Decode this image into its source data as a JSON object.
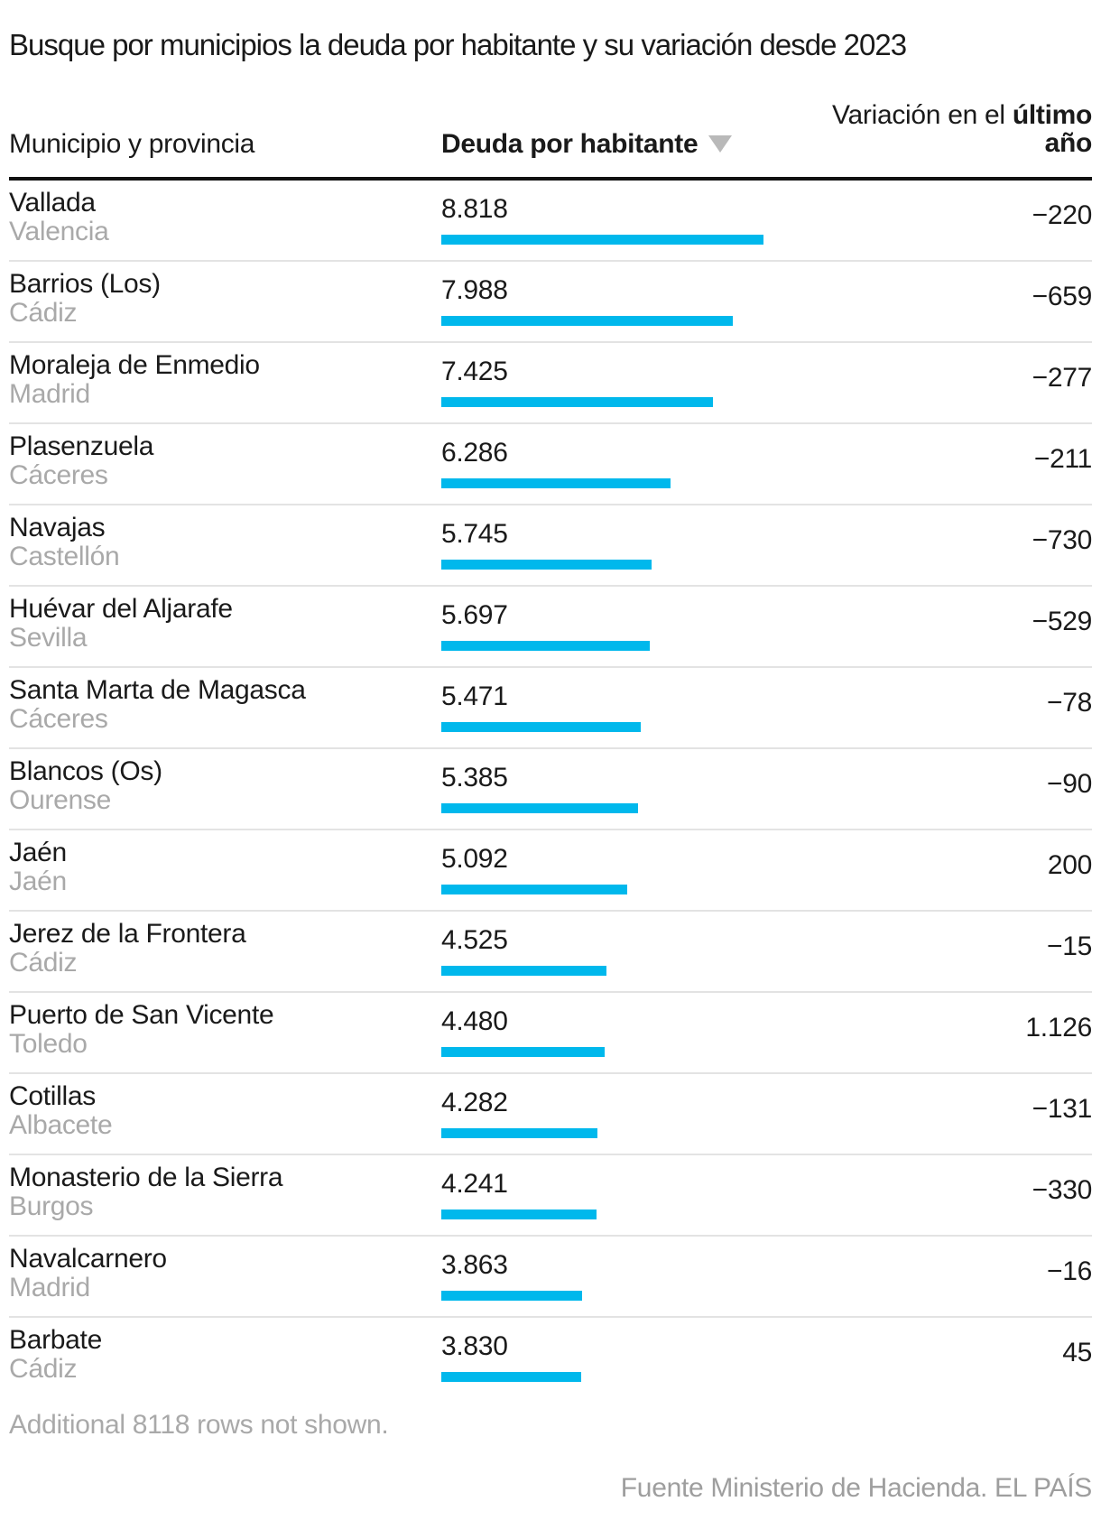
{
  "title": "Busque por municipios la deuda por habitante y su variación desde 2023",
  "table": {
    "col_municipio": "Municipio y provincia",
    "col_deuda": "Deuda por habitante",
    "sort_icon": "triangle-down-icon",
    "col_variacion_line1_regular": "Variación en el ",
    "col_variacion_line1_bold": "último",
    "col_variacion_line2_bold": "año",
    "bar_color": "#00b8ec",
    "rows": [
      {
        "municipio": "Vallada",
        "provincia": "Valencia",
        "deuda": "8.818",
        "deuda_value": 8818,
        "variacion": "−220"
      },
      {
        "municipio": "Barrios (Los)",
        "provincia": "Cádiz",
        "deuda": "7.988",
        "deuda_value": 7988,
        "variacion": "−659"
      },
      {
        "municipio": "Moraleja de Enmedio",
        "provincia": "Madrid",
        "deuda": "7.425",
        "deuda_value": 7425,
        "variacion": "−277"
      },
      {
        "municipio": "Plasenzuela",
        "provincia": "Cáceres",
        "deuda": "6.286",
        "deuda_value": 6286,
        "variacion": "−211"
      },
      {
        "municipio": "Navajas",
        "provincia": "Castellón",
        "deuda": "5.745",
        "deuda_value": 5745,
        "variacion": "−730"
      },
      {
        "municipio": "Huévar del Aljarafe",
        "provincia": "Sevilla",
        "deuda": "5.697",
        "deuda_value": 5697,
        "variacion": "−529"
      },
      {
        "municipio": "Santa Marta de Magasca",
        "provincia": "Cáceres",
        "deuda": "5.471",
        "deuda_value": 5471,
        "variacion": "−78"
      },
      {
        "municipio": "Blancos (Os)",
        "provincia": "Ourense",
        "deuda": "5.385",
        "deuda_value": 5385,
        "variacion": "−90"
      },
      {
        "municipio": "Jaén",
        "provincia": "Jaén",
        "deuda": "5.092",
        "deuda_value": 5092,
        "variacion": "200"
      },
      {
        "municipio": "Jerez de la Frontera",
        "provincia": "Cádiz",
        "deuda": "4.525",
        "deuda_value": 4525,
        "variacion": "−15"
      },
      {
        "municipio": "Puerto de San Vicente",
        "provincia": "Toledo",
        "deuda": "4.480",
        "deuda_value": 4480,
        "variacion": "1.126"
      },
      {
        "municipio": "Cotillas",
        "provincia": "Albacete",
        "deuda": "4.282",
        "deuda_value": 4282,
        "variacion": "−131"
      },
      {
        "municipio": "Monasterio de la Sierra",
        "provincia": "Burgos",
        "deuda": "4.241",
        "deuda_value": 4241,
        "variacion": "−330"
      },
      {
        "municipio": "Navalcarnero",
        "provincia": "Madrid",
        "deuda": "3.863",
        "deuda_value": 3863,
        "variacion": "−16"
      },
      {
        "municipio": "Barbate",
        "provincia": "Cádiz",
        "deuda": "3.830",
        "deuda_value": 3830,
        "variacion": "45"
      }
    ]
  },
  "footer": {
    "note": "Additional 8118 rows not shown.",
    "source": "Fuente Ministerio de Hacienda. EL PAÍS"
  },
  "chart_data": {
    "type": "bar",
    "title": "Busque por municipios la deuda por habitante y su variación desde 2023",
    "categories": [
      "Vallada (Valencia)",
      "Barrios (Los) (Cádiz)",
      "Moraleja de Enmedio (Madrid)",
      "Plasenzuela (Cáceres)",
      "Navajas (Castellón)",
      "Huévar del Aljarafe (Sevilla)",
      "Santa Marta de Magasca (Cáceres)",
      "Blancos (Os) (Ourense)",
      "Jaén (Jaén)",
      "Jerez de la Frontera (Cádiz)",
      "Puerto de San Vicente (Toledo)",
      "Cotillas (Albacete)",
      "Monasterio de la Sierra (Burgos)",
      "Navalcarnero (Madrid)",
      "Barbate (Cádiz)"
    ],
    "series": [
      {
        "name": "Deuda por habitante",
        "values": [
          8818,
          7988,
          7425,
          6286,
          5745,
          5697,
          5471,
          5385,
          5092,
          4525,
          4480,
          4282,
          4241,
          3863,
          3830
        ]
      },
      {
        "name": "Variación en el último año",
        "values": [
          -220,
          -659,
          -277,
          -211,
          -730,
          -529,
          -78,
          -90,
          200,
          -15,
          1126,
          -131,
          -330,
          -16,
          45
        ]
      }
    ],
    "xlabel": "",
    "ylabel": "",
    "xlim": [
      0,
      8818
    ],
    "grid": false,
    "legend_position": "none",
    "bar_color": "#00b8ec",
    "sorted_by": "Deuda por habitante descending"
  }
}
